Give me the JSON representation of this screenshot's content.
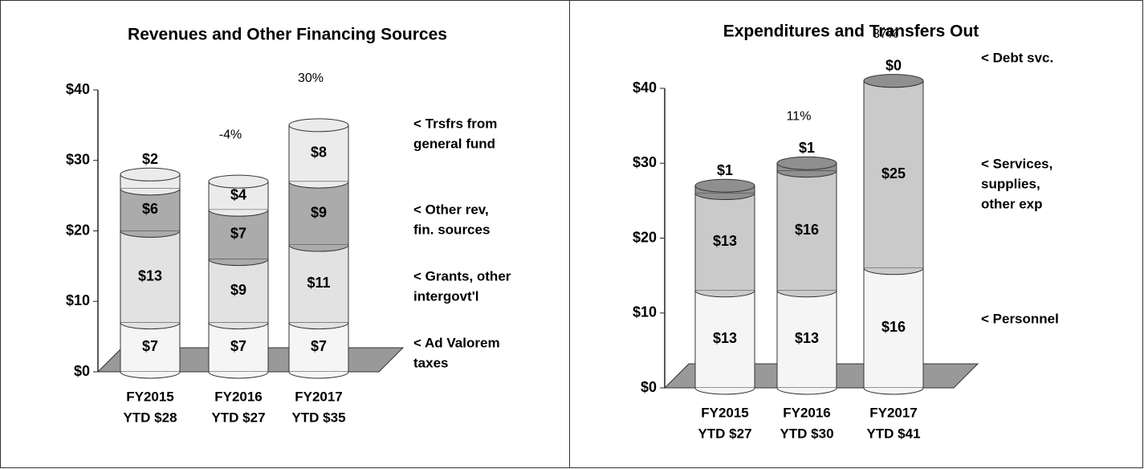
{
  "chart_data": [
    {
      "type": "bar",
      "stacked": true,
      "title": "Revenues and Other Financing Sources",
      "categories": [
        [
          "FY2015",
          "YTD $28"
        ],
        [
          "FY2016",
          "YTD $27"
        ],
        [
          "FY2017",
          "YTD $35"
        ]
      ],
      "change_labels": [
        null,
        "-4%",
        "30%"
      ],
      "ylim": [
        0,
        40
      ],
      "yticks": [
        {
          "value": 0,
          "label": "$0"
        },
        {
          "value": 10,
          "label": "$10"
        },
        {
          "value": 20,
          "label": "$20"
        },
        {
          "value": 30,
          "label": "$30"
        },
        {
          "value": 40,
          "label": "$40"
        }
      ],
      "series": [
        {
          "name": [
            "< Ad Valorem",
            "taxes"
          ],
          "color": "#f5f5f5",
          "values": [
            7,
            7,
            7
          ],
          "value_labels": [
            "$7",
            "$7",
            "$7"
          ]
        },
        {
          "name": [
            "< Grants, other",
            "intergovt'l"
          ],
          "color": "#e2e2e2",
          "values": [
            13,
            9,
            11
          ],
          "value_labels": [
            "$13",
            "$9",
            "$11"
          ]
        },
        {
          "name": [
            "< Other rev,",
            "fin. sources"
          ],
          "color": "#ababab",
          "values": [
            6,
            7,
            9
          ],
          "value_labels": [
            "$6",
            "$7",
            "$9"
          ]
        },
        {
          "name": [
            "< Trsfrs from",
            "general fund"
          ],
          "color": "#ebebeb",
          "values": [
            2,
            4,
            8
          ],
          "value_labels": [
            "$2",
            "$4",
            "$8"
          ]
        }
      ]
    },
    {
      "type": "bar",
      "stacked": true,
      "title": "Expenditures and Transfers Out",
      "categories": [
        [
          "FY2015",
          "YTD $27"
        ],
        [
          "FY2016",
          "YTD $30"
        ],
        [
          "FY2017",
          "YTD $41"
        ]
      ],
      "change_labels": [
        null,
        "11%",
        "37%"
      ],
      "ylim": [
        0,
        40
      ],
      "yticks": [
        {
          "value": 0,
          "label": "$0"
        },
        {
          "value": 10,
          "label": "$10"
        },
        {
          "value": 20,
          "label": "$20"
        },
        {
          "value": 30,
          "label": "$30"
        },
        {
          "value": 40,
          "label": "$40"
        }
      ],
      "series": [
        {
          "name": [
            "< Personnel"
          ],
          "color": "#f5f5f5",
          "values": [
            13,
            13,
            16
          ],
          "value_labels": [
            "$13",
            "$13",
            "$16"
          ]
        },
        {
          "name": [
            "< Services,",
            "supplies,",
            "other exp"
          ],
          "color": "#cacaca",
          "values": [
            13,
            16,
            25
          ],
          "value_labels": [
            "$13",
            "$16",
            "$25"
          ]
        },
        {
          "name": [
            "< Debt svc."
          ],
          "color": "#8f8f8f",
          "values": [
            1,
            1,
            0
          ],
          "value_labels": [
            "$1",
            "$1",
            "$0"
          ]
        }
      ]
    }
  ]
}
